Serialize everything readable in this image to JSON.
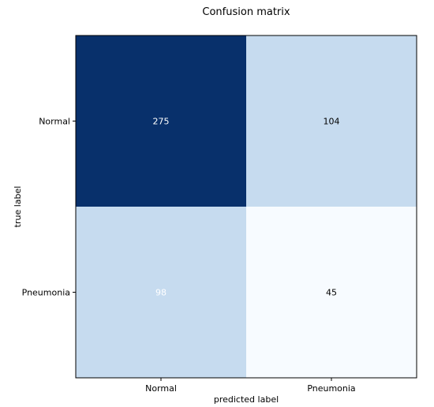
{
  "chart_data": {
    "type": "heatmap",
    "title": "Confusion matrix",
    "xlabel": "predicted label",
    "ylabel": "true label",
    "x_categories": [
      "Normal",
      "Pneumonia"
    ],
    "y_categories": [
      "Normal",
      "Pneumonia"
    ],
    "values": [
      [
        275,
        104
      ],
      [
        98,
        45
      ]
    ],
    "colormap": "Blues",
    "color_range": [
      45,
      275
    ],
    "cell_colors": [
      [
        "#08306b",
        "#c6dbef"
      ],
      [
        "#c6dbef",
        "#f7fbff"
      ]
    ],
    "text_colors": [
      [
        "#ffffff",
        "#000000"
      ],
      [
        "#ffffff",
        "#000000"
      ]
    ]
  }
}
